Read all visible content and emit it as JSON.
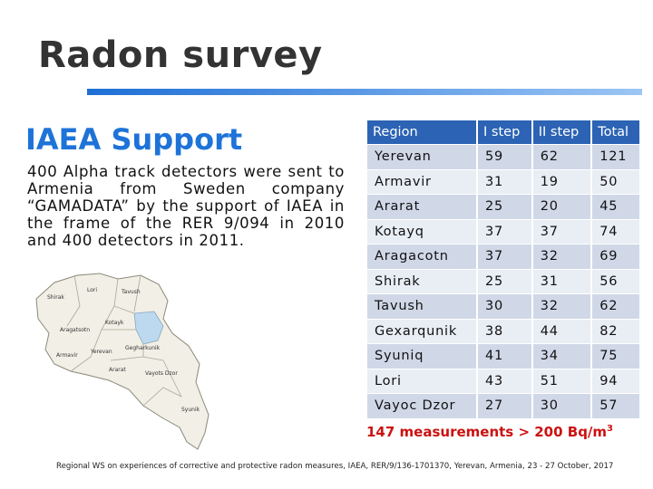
{
  "slide": {
    "title": "Radon survey",
    "subtitle": "IAEA Support",
    "body": "400 Alpha track detectors were sent to Armenia from Sweden company “GAMADATA” by the support of IAEA in the frame of the RER 9/094 in 2010 and 400 detectors in 2011.",
    "note_main": "147 measurements > 200 Bq/m",
    "note_sup": "3",
    "footer": "Regional WS on experiences of corrective and protective radon measures, IAEA, RER/9/136-1701370, Yerevan, Armenia, 23 - 27 October, 2017"
  },
  "map_labels": [
    "Shirak",
    "Lori",
    "Tavush",
    "Aragatsotn",
    "Kotayk",
    "Gegharkunik",
    "Armavir",
    "Yerevan",
    "Ararat",
    "Vayots Dzor",
    "Syunik"
  ],
  "colors": {
    "accent_blue": "#1e73d8",
    "header_blue": "#2c63b4",
    "note_red": "#cc1111"
  },
  "table": {
    "headers": [
      "Region",
      "I step",
      "II step",
      "Total"
    ],
    "rows": [
      [
        "Yerevan",
        "59",
        "62",
        "121"
      ],
      [
        "Armavir",
        "31",
        "19",
        "50"
      ],
      [
        "Ararat",
        "25",
        "20",
        "45"
      ],
      [
        "Kotayq",
        "37",
        "37",
        "74"
      ],
      [
        "Aragacotn",
        "37",
        "32",
        "69"
      ],
      [
        "Shirak",
        "25",
        "31",
        "56"
      ],
      [
        "Tavush",
        "30",
        "32",
        "62"
      ],
      [
        "Gexarqunik",
        "38",
        "44",
        "82"
      ],
      [
        "Syuniq",
        "41",
        "34",
        "75"
      ],
      [
        "Lori",
        "43",
        "51",
        "94"
      ],
      [
        "Vayoc Dzor",
        "27",
        "30",
        "57"
      ]
    ]
  }
}
